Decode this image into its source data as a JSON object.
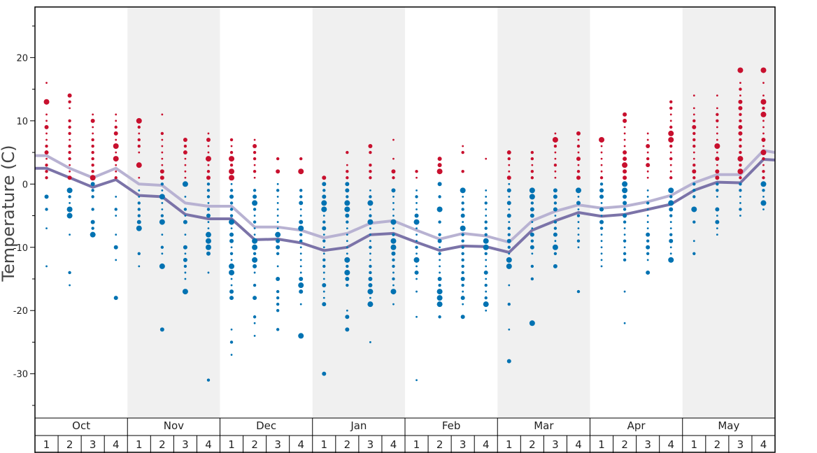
{
  "chart_data": {
    "type": "scatter",
    "ylabel": "Temperature (C)",
    "ylim": [
      -37,
      28
    ],
    "y_ticks": [
      "20",
      "10",
      "0",
      "-10",
      "-20",
      "-30"
    ],
    "months": [
      "Oct",
      "Nov",
      "Dec",
      "Jan",
      "Feb",
      "Mar",
      "Apr",
      "May"
    ],
    "weeks": [
      "1",
      "2",
      "3",
      "4"
    ],
    "colors": {
      "warm_dots": "#c8102e",
      "cold_dots": "#0072b2",
      "upper_line": "#b8b2d2",
      "lower_line": "#7b73a8",
      "shade": "#f0f0f0"
    },
    "lines": [
      {
        "role": "upper",
        "values": [
          4.5,
          2.5,
          1.0,
          2.5,
          0.0,
          -0.2,
          -3.0,
          -3.5,
          -3.5,
          -6.8,
          -6.8,
          -7.3,
          -8.5,
          -7.8,
          -6.2,
          -5.8,
          -7.3,
          -8.7,
          -7.8,
          -8.2,
          -9.2,
          -5.8,
          -4.3,
          -3.3,
          -3.8,
          -3.5,
          -2.8,
          -1.8,
          0.2,
          1.5,
          1.5,
          5.3,
          5.0
        ]
      },
      {
        "role": "lower",
        "values": [
          2.5,
          1.0,
          -0.5,
          0.7,
          -1.8,
          -2.0,
          -4.8,
          -5.5,
          -5.5,
          -8.8,
          -8.7,
          -9.3,
          -10.5,
          -10.0,
          -8.0,
          -7.8,
          -9.2,
          -10.5,
          -9.8,
          -9.9,
          -10.8,
          -7.3,
          -5.8,
          -4.5,
          -5.1,
          -4.8,
          -4.0,
          -3.2,
          -1.0,
          0.3,
          0.2,
          3.9,
          3.8
        ]
      }
    ],
    "weekly_dots": [
      {
        "month": "Oct",
        "week": "1",
        "warm": [
          16,
          13,
          11,
          10,
          9,
          8,
          7,
          6,
          5,
          4,
          3,
          2,
          1
        ],
        "cold": [
          -2,
          -4,
          -7,
          -13
        ]
      },
      {
        "month": "Oct",
        "week": "2",
        "warm": [
          14,
          13,
          12,
          10,
          9,
          8,
          7,
          6,
          5,
          4,
          3,
          2,
          1
        ],
        "cold": [
          -1,
          -2,
          -3,
          -4,
          -5,
          -8,
          -14,
          -16
        ]
      },
      {
        "month": "Oct",
        "week": "3",
        "warm": [
          11,
          10,
          9,
          8,
          7,
          6,
          5,
          4,
          3,
          2,
          1
        ],
        "cold": [
          0,
          -1,
          -2,
          -4,
          -6,
          -7,
          -8
        ]
      },
      {
        "month": "Oct",
        "week": "4",
        "warm": [
          11,
          10,
          9,
          8,
          7,
          6,
          5,
          4,
          3,
          2,
          1
        ],
        "cold": [
          -2,
          -4,
          -5,
          -8,
          -10,
          -12,
          -18
        ]
      },
      {
        "month": "Nov",
        "week": "1",
        "warm": [
          10,
          9,
          8,
          7,
          6,
          5,
          3,
          1
        ],
        "cold": [
          -1,
          -2,
          -3,
          -4,
          -5,
          -6,
          -7,
          -11,
          -13
        ]
      },
      {
        "month": "Nov",
        "week": "2",
        "warm": [
          11,
          8,
          7,
          6,
          5,
          4,
          3,
          2,
          1
        ],
        "cold": [
          0,
          -1,
          -2,
          -3,
          -4,
          -5,
          -6,
          -8,
          -10,
          -11,
          -13,
          -23
        ]
      },
      {
        "month": "Nov",
        "week": "3",
        "warm": [
          7,
          6,
          5,
          4,
          3,
          2,
          1
        ],
        "cold": [
          0,
          -2,
          -4,
          -5,
          -6,
          -8,
          -10,
          -11,
          -12,
          -13,
          -14,
          -15,
          -17
        ]
      },
      {
        "month": "Nov",
        "week": "4",
        "warm": [
          8,
          7,
          6,
          5,
          4,
          3,
          2,
          1
        ],
        "cold": [
          0,
          -1,
          -2,
          -3,
          -4,
          -5,
          -6,
          -7,
          -8,
          -9,
          -10,
          -11,
          -14,
          -31
        ]
      },
      {
        "month": "Dec",
        "week": "1",
        "warm": [
          7,
          6,
          5,
          4,
          3,
          2,
          1
        ],
        "cold": [
          0,
          -1,
          -2,
          -3,
          -4,
          -5,
          -6,
          -7,
          -8,
          -9,
          -10,
          -11,
          -12,
          -13,
          -14,
          -15,
          -16,
          -17,
          -18,
          -23,
          -25,
          -27
        ]
      },
      {
        "month": "Dec",
        "week": "2",
        "warm": [
          7,
          6,
          5,
          4,
          3,
          2,
          1
        ],
        "cold": [
          -1,
          -2,
          -3,
          -4,
          -5,
          -6,
          -7,
          -8,
          -9,
          -10,
          -11,
          -12,
          -13,
          -14,
          -16,
          -18,
          -21,
          -22,
          -24
        ]
      },
      {
        "month": "Dec",
        "week": "3",
        "warm": [
          4,
          2
        ],
        "cold": [
          0,
          -1,
          -2,
          -3,
          -4,
          -5,
          -6,
          -7,
          -8,
          -9,
          -10,
          -11,
          -13,
          -15,
          -17,
          -18,
          -19,
          -20,
          -23
        ]
      },
      {
        "month": "Dec",
        "week": "4",
        "warm": [
          4,
          2
        ],
        "cold": [
          -1,
          -2,
          -3,
          -4,
          -5,
          -6,
          -7,
          -8,
          -9,
          -10,
          -11,
          -12,
          -13,
          -14,
          -15,
          -16,
          -17,
          -19,
          -24
        ]
      },
      {
        "month": "Jan",
        "week": "1",
        "warm": [
          1
        ],
        "cold": [
          0,
          -1,
          -2,
          -3,
          -4,
          -5,
          -6,
          -7,
          -8,
          -9,
          -10,
          -11,
          -12,
          -13,
          -14,
          -15,
          -16,
          -17,
          -18,
          -19,
          -30
        ]
      },
      {
        "month": "Jan",
        "week": "2",
        "warm": [
          5,
          3,
          2,
          1
        ],
        "cold": [
          0,
          -1,
          -2,
          -3,
          -4,
          -5,
          -6,
          -7,
          -8,
          -9,
          -10,
          -11,
          -12,
          -13,
          -14,
          -15,
          -16,
          -20,
          -21,
          -23
        ]
      },
      {
        "month": "Jan",
        "week": "3",
        "warm": [
          6,
          5,
          3,
          2,
          1
        ],
        "cold": [
          -1,
          -2,
          -3,
          -4,
          -5,
          -6,
          -7,
          -8,
          -9,
          -10,
          -11,
          -12,
          -13,
          -14,
          -15,
          -16,
          -17,
          -18,
          -19,
          -25
        ]
      },
      {
        "month": "Jan",
        "week": "4",
        "warm": [
          7,
          4,
          2,
          1
        ],
        "cold": [
          -1,
          -2,
          -3,
          -4,
          -5,
          -6,
          -7,
          -8,
          -9,
          -10,
          -11,
          -12,
          -13,
          -14,
          -15,
          -16,
          -17,
          -19
        ]
      },
      {
        "month": "Feb",
        "week": "1",
        "warm": [
          2,
          1
        ],
        "cold": [
          -1,
          -2,
          -3,
          -4,
          -5,
          -6,
          -7,
          -8,
          -9,
          -10,
          -11,
          -12,
          -13,
          -14,
          -15,
          -17,
          -21,
          -31
        ]
      },
      {
        "month": "Feb",
        "week": "2",
        "warm": [
          4,
          3,
          2
        ],
        "cold": [
          0,
          -2,
          -4,
          -6,
          -8,
          -9,
          -10,
          -11,
          -12,
          -13,
          -14,
          -15,
          -16,
          -17,
          -18,
          -19,
          -21
        ]
      },
      {
        "month": "Feb",
        "week": "3",
        "warm": [
          6,
          5,
          2
        ],
        "cold": [
          -1,
          -2,
          -3,
          -4,
          -5,
          -6,
          -7,
          -8,
          -9,
          -10,
          -11,
          -12,
          -13,
          -14,
          -15,
          -16,
          -17,
          -18,
          -19,
          -21
        ]
      },
      {
        "month": "Feb",
        "week": "4",
        "warm": [
          4
        ],
        "cold": [
          -1,
          -2,
          -3,
          -4,
          -5,
          -6,
          -7,
          -8,
          -9,
          -10,
          -11,
          -12,
          -13,
          -14,
          -15,
          -16,
          -17,
          -18,
          -19,
          -20
        ]
      },
      {
        "month": "Mar",
        "week": "1",
        "warm": [
          5,
          4,
          3,
          2,
          1
        ],
        "cold": [
          0,
          -1,
          -2,
          -3,
          -4,
          -5,
          -6,
          -7,
          -8,
          -9,
          -10,
          -11,
          -12,
          -13,
          -16,
          -19,
          -23,
          -28
        ]
      },
      {
        "month": "Mar",
        "week": "2",
        "warm": [
          5,
          4,
          3,
          2,
          1
        ],
        "cold": [
          -1,
          -2,
          -3,
          -4,
          -5,
          -6,
          -7,
          -8,
          -9,
          -10,
          -11,
          -13,
          -15,
          -22
        ]
      },
      {
        "month": "Mar",
        "week": "3",
        "warm": [
          8,
          7,
          6,
          5,
          4,
          3,
          2,
          1
        ],
        "cold": [
          -1,
          -2,
          -3,
          -4,
          -5,
          -6,
          -7,
          -8,
          -9,
          -10,
          -11,
          -13
        ]
      },
      {
        "month": "Mar",
        "week": "4",
        "warm": [
          8,
          7,
          6,
          5,
          4,
          3,
          2,
          1
        ],
        "cold": [
          -1,
          -2,
          -3,
          -4,
          -5,
          -6,
          -7,
          -8,
          -9,
          -10,
          -17
        ]
      },
      {
        "month": "Apr",
        "week": "1",
        "warm": [
          7,
          6,
          5,
          4,
          3,
          2,
          1
        ],
        "cold": [
          0,
          -1,
          -2,
          -3,
          -4,
          -5,
          -6,
          -7,
          -8,
          -9,
          -10,
          -11,
          -12,
          -13
        ]
      },
      {
        "month": "Apr",
        "week": "2",
        "warm": [
          11,
          10,
          9,
          8,
          7,
          6,
          5,
          4,
          3,
          2,
          1
        ],
        "cold": [
          0,
          -1,
          -2,
          -3,
          -4,
          -5,
          -6,
          -7,
          -8,
          -9,
          -10,
          -11,
          -12,
          -17,
          -22
        ]
      },
      {
        "month": "Apr",
        "week": "3",
        "warm": [
          8,
          7,
          6,
          5,
          4,
          3,
          2,
          1
        ],
        "cold": [
          -1,
          -2,
          -3,
          -4,
          -5,
          -6,
          -7,
          -8,
          -9,
          -10,
          -11,
          -12,
          -14
        ]
      },
      {
        "month": "Apr",
        "week": "4",
        "warm": [
          13,
          12,
          11,
          10,
          9,
          8,
          7,
          6,
          5,
          4,
          3,
          2,
          1
        ],
        "cold": [
          -1,
          -2,
          -3,
          -4,
          -5,
          -6,
          -7,
          -8,
          -9,
          -10,
          -11,
          -12
        ]
      },
      {
        "month": "May",
        "week": "1",
        "warm": [
          14,
          12,
          11,
          10,
          9,
          8,
          7,
          6,
          5,
          4,
          3,
          2,
          1
        ],
        "cold": [
          0,
          -1,
          -2,
          -4,
          -6,
          -9,
          -11
        ]
      },
      {
        "month": "May",
        "week": "2",
        "warm": [
          14,
          12,
          11,
          10,
          9,
          8,
          7,
          6,
          5,
          4,
          3,
          2,
          1
        ],
        "cold": [
          0,
          -1,
          -2,
          -4,
          -5,
          -6,
          -7,
          -8
        ]
      },
      {
        "month": "May",
        "week": "3",
        "warm": [
          18,
          16,
          15,
          14,
          13,
          12,
          11,
          10,
          9,
          8,
          7,
          6,
          5,
          4,
          3,
          2,
          1
        ],
        "cold": [
          0,
          -1,
          -2,
          -3,
          -4,
          -5
        ]
      },
      {
        "month": "May",
        "week": "4",
        "warm": [
          18,
          16,
          14,
          13,
          12,
          11,
          10,
          9,
          8,
          7,
          6,
          5,
          4,
          3,
          2,
          1
        ],
        "cold": [
          0,
          -1,
          -2,
          -3,
          -4
        ]
      }
    ]
  }
}
